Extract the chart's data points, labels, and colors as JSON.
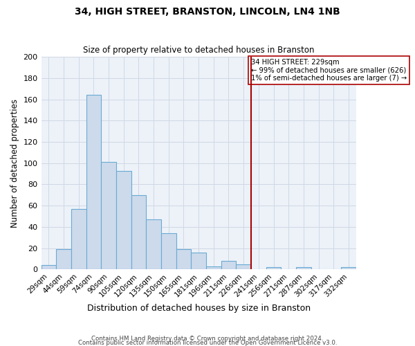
{
  "title": "34, HIGH STREET, BRANSTON, LINCOLN, LN4 1NB",
  "subtitle": "Size of property relative to detached houses in Branston",
  "xlabel": "Distribution of detached houses by size in Branston",
  "ylabel": "Number of detached properties",
  "bar_labels": [
    "29sqm",
    "44sqm",
    "59sqm",
    "74sqm",
    "90sqm",
    "105sqm",
    "120sqm",
    "135sqm",
    "150sqm",
    "165sqm",
    "181sqm",
    "196sqm",
    "211sqm",
    "226sqm",
    "241sqm",
    "256sqm",
    "271sqm",
    "287sqm",
    "302sqm",
    "317sqm",
    "332sqm"
  ],
  "bar_values": [
    4,
    19,
    57,
    164,
    101,
    93,
    70,
    47,
    34,
    19,
    16,
    3,
    8,
    5,
    0,
    2,
    0,
    2,
    0,
    0,
    2
  ],
  "bar_color": "#ccdaeb",
  "bar_edge_color": "#6aaad4",
  "grid_color": "#d0d8e4",
  "bg_color": "#edf2f9",
  "vline_color": "#aa0000",
  "annotation_text": "34 HIGH STREET: 229sqm\n← 99% of detached houses are smaller (626)\n1% of semi-detached houses are larger (7) →",
  "annotation_box_color": "#ffffff",
  "annotation_border_color": "#aa0000",
  "footer1": "Contains HM Land Registry data © Crown copyright and database right 2024.",
  "footer2": "Contains public sector information licensed under the Open Government Licence v3.0.",
  "ylim": [
    0,
    200
  ],
  "yticks": [
    0,
    20,
    40,
    60,
    80,
    100,
    120,
    140,
    160,
    180,
    200
  ]
}
